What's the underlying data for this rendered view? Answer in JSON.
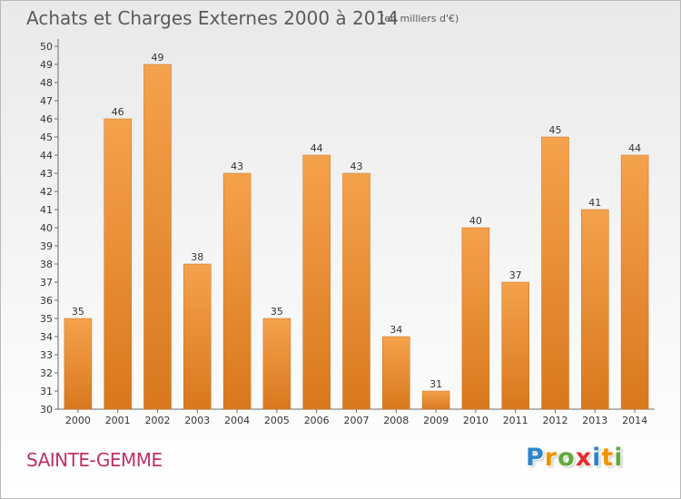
{
  "chart_data": {
    "type": "bar",
    "title": "Achats et Charges Externes 2000 à 2014",
    "subtitle": "(en milliers d'€)",
    "categories": [
      "2000",
      "2001",
      "2002",
      "2003",
      "2004",
      "2005",
      "2006",
      "2007",
      "2008",
      "2009",
      "2010",
      "2011",
      "2012",
      "2013",
      "2014"
    ],
    "values": [
      35,
      46,
      49,
      38,
      43,
      35,
      44,
      43,
      34,
      31,
      40,
      37,
      45,
      41,
      44
    ],
    "data_labels": [
      "35",
      "46",
      "49",
      "38",
      "43",
      "35",
      "44",
      "43",
      "34",
      "31",
      "40",
      "37",
      "45",
      "41",
      "44"
    ],
    "yticks": [
      "30",
      "31",
      "32",
      "33",
      "34",
      "35",
      "36",
      "37",
      "38",
      "39",
      "40",
      "41",
      "42",
      "43",
      "44",
      "45",
      "46",
      "47",
      "48",
      "49",
      "50"
    ],
    "ylim": [
      30,
      50
    ],
    "grid": false,
    "legend": "none",
    "bar_color_top": "#f5a24c",
    "bar_color_bottom": "#d9781d"
  },
  "footer": {
    "commune": "SAINTE-GEMME",
    "brand_letters": [
      "P",
      "r",
      "o",
      "x",
      "i",
      "t",
      "i"
    ],
    "brand_colors": [
      "#2e86c8",
      "#f39200",
      "#63a83f",
      "#e52d2d",
      "#2e86c8",
      "#f39200",
      "#63a83f"
    ]
  }
}
